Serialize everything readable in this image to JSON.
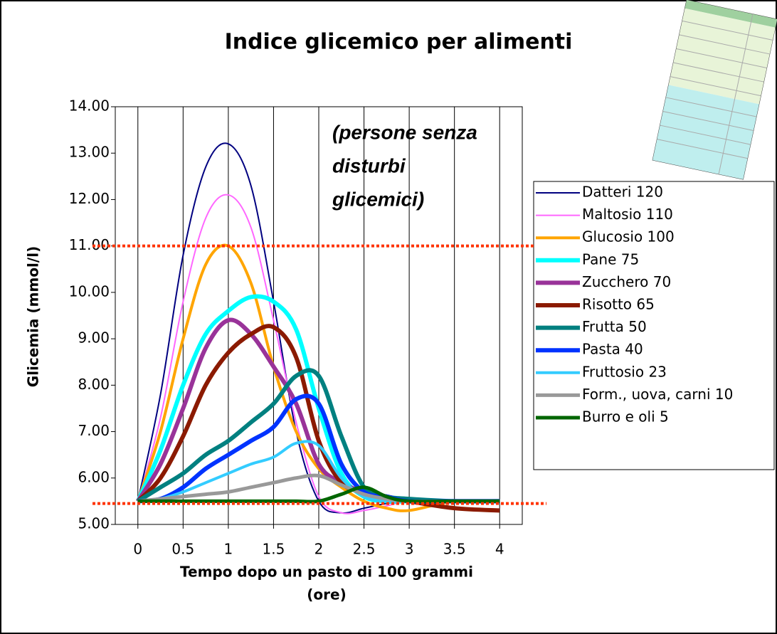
{
  "chart_data": {
    "type": "line",
    "title": "Indice glicemico per alimenti",
    "ylabel": "Glicemia (mmol/l)",
    "xlabel": [
      "Tempo dopo un pasto di 100 grammi",
      "(ore)"
    ],
    "annotation": [
      "(persone senza",
      "disturbi",
      "glicemici)"
    ],
    "x": [
      0,
      0.25,
      0.5,
      0.75,
      1,
      1.25,
      1.5,
      1.75,
      2,
      2.25,
      2.5,
      2.75,
      3,
      3.5,
      4
    ],
    "xlim": [
      -0.25,
      4.25
    ],
    "xticks": [
      0,
      0.5,
      1,
      1.5,
      2,
      2.5,
      3,
      3.5,
      4
    ],
    "ylim": [
      5,
      14
    ],
    "yticks": [
      {
        "value": 5,
        "label": "5.00"
      },
      {
        "value": 6,
        "label": "6.00"
      },
      {
        "value": 7,
        "label": "7.00"
      },
      {
        "value": 8,
        "label": "8.00"
      },
      {
        "value": 9,
        "label": "9.00"
      },
      {
        "value": 10,
        "label": "10.00"
      },
      {
        "value": 11,
        "label": "11.00"
      },
      {
        "value": 12,
        "label": "12.00"
      },
      {
        "value": 13,
        "label": "13.00"
      },
      {
        "value": 14,
        "label": "14.00"
      }
    ],
    "grid": true,
    "reference_lines": [
      11,
      5.45
    ],
    "reference_color": "#ff3300",
    "legend": "right",
    "series": [
      {
        "name": "Datteri 120",
        "color": "#000080",
        "line_width": 2,
        "values": [
          5.5,
          7.8,
          10.8,
          12.7,
          13.2,
          12.3,
          9.8,
          7.0,
          5.5,
          5.25,
          5.35,
          5.45,
          5.5,
          5.5,
          5.5
        ]
      },
      {
        "name": "Maltosio 110",
        "color": "#ff66ff",
        "line_width": 2,
        "values": [
          5.5,
          7.3,
          9.8,
          11.6,
          12.1,
          11.4,
          9.4,
          7.2,
          5.6,
          5.25,
          5.3,
          5.4,
          5.5,
          5.5,
          5.5
        ]
      },
      {
        "name": "Glucosio 100",
        "color": "#ffa500",
        "line_width": 4,
        "values": [
          5.5,
          7.0,
          9.0,
          10.6,
          11.0,
          10.2,
          8.4,
          7.0,
          6.2,
          5.8,
          5.5,
          5.35,
          5.3,
          5.5,
          5.5
        ]
      },
      {
        "name": "Pane 75",
        "color": "#00ffff",
        "line_width": 6,
        "values": [
          5.5,
          6.6,
          8.0,
          9.1,
          9.6,
          9.9,
          9.8,
          9.2,
          7.5,
          6.1,
          5.6,
          5.5,
          5.5,
          5.5,
          5.5
        ]
      },
      {
        "name": "Zucchero 70",
        "color": "#993399",
        "line_width": 6,
        "values": [
          5.5,
          6.3,
          7.5,
          8.8,
          9.4,
          9.1,
          8.4,
          7.6,
          6.3,
          5.9,
          5.7,
          5.6,
          5.5,
          5.5,
          5.5
        ]
      },
      {
        "name": "Risotto 65",
        "color": "#8b1a00",
        "line_width": 6,
        "values": [
          5.5,
          6.0,
          6.9,
          8.0,
          8.7,
          9.1,
          9.25,
          8.6,
          6.8,
          5.9,
          5.7,
          5.6,
          5.5,
          5.35,
          5.3
        ]
      },
      {
        "name": "Frutta 50",
        "color": "#008080",
        "line_width": 6,
        "values": [
          5.5,
          5.8,
          6.1,
          6.5,
          6.8,
          7.2,
          7.6,
          8.2,
          8.2,
          6.9,
          5.8,
          5.6,
          5.55,
          5.5,
          5.5
        ]
      },
      {
        "name": "Pasta 40",
        "color": "#0033ff",
        "line_width": 6,
        "values": [
          5.5,
          5.55,
          5.8,
          6.2,
          6.5,
          6.8,
          7.1,
          7.7,
          7.6,
          6.3,
          5.7,
          5.6,
          5.5,
          5.5,
          5.5
        ]
      },
      {
        "name": "Fruttosio 23",
        "color": "#33ccff",
        "line_width": 4,
        "values": [
          5.5,
          5.55,
          5.7,
          5.9,
          6.1,
          6.3,
          6.45,
          6.75,
          6.7,
          6.0,
          5.6,
          5.5,
          5.5,
          5.5,
          5.5
        ]
      },
      {
        "name": "Form., uova, carni 10",
        "color": "#999999",
        "line_width": 5,
        "values": [
          5.5,
          5.55,
          5.6,
          5.65,
          5.7,
          5.8,
          5.9,
          6.0,
          6.05,
          5.85,
          5.65,
          5.55,
          5.5,
          5.5,
          5.5
        ]
      },
      {
        "name": "Burro e oli 5",
        "color": "#006600",
        "line_width": 5,
        "values": [
          5.5,
          5.5,
          5.5,
          5.5,
          5.5,
          5.5,
          5.5,
          5.5,
          5.5,
          5.65,
          5.8,
          5.6,
          5.5,
          5.5,
          5.5
        ]
      }
    ]
  }
}
